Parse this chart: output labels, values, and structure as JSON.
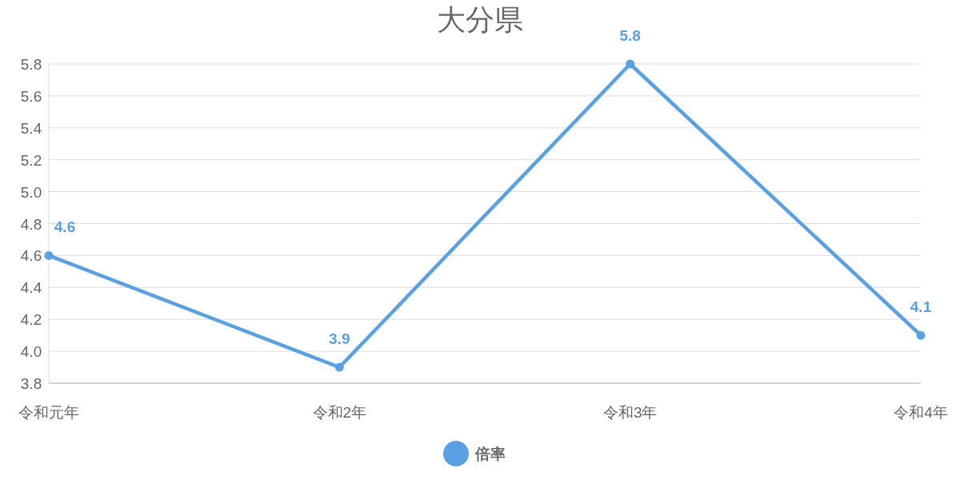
{
  "chart_data": {
    "type": "line",
    "title": "大分県",
    "categories": [
      "令和元年",
      "令和2年",
      "令和3年",
      "令和4年"
    ],
    "series": [
      {
        "name": "倍率",
        "color": "#5aa1e3",
        "values": [
          4.6,
          3.9,
          5.8,
          4.1
        ]
      }
    ],
    "ylim": [
      3.8,
      5.8
    ],
    "yticks": [
      {
        "value": 3.8,
        "label": "3.8"
      },
      {
        "value": 4.0,
        "label": "4.0"
      },
      {
        "value": 4.2,
        "label": "4.2"
      },
      {
        "value": 4.4,
        "label": "4.4"
      },
      {
        "value": 4.6,
        "label": "4.6"
      },
      {
        "value": 4.8,
        "label": "4.8"
      },
      {
        "value": 5.0,
        "label": "5.0"
      },
      {
        "value": 5.2,
        "label": "5.2"
      },
      {
        "value": 5.4,
        "label": "5.4"
      },
      {
        "value": 5.6,
        "label": "5.6"
      },
      {
        "value": 5.8,
        "label": "5.8"
      }
    ],
    "grid": "y",
    "legend": "bottom",
    "marker": "circle",
    "line_style": "solid",
    "data_labels": true
  }
}
